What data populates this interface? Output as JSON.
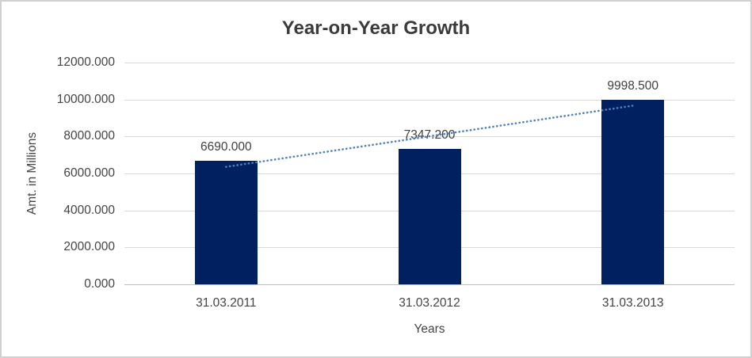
{
  "chart_data": {
    "type": "bar",
    "title": "Year-on-Year Growth",
    "xlabel": "Years",
    "ylabel": "Amt. in Millions",
    "categories": [
      "31.03.2011",
      "31.03.2012",
      "31.03.2013"
    ],
    "values": [
      6690.0,
      7347.2,
      9998.5
    ],
    "data_labels": [
      "6690.000",
      "7347.200",
      "9998.500"
    ],
    "ylim": [
      0,
      12000
    ],
    "ytick_step": 2000,
    "ytick_labels": [
      "0.000",
      "2000.000",
      "4000.000",
      "6000.000",
      "8000.000",
      "10000.000",
      "12000.000"
    ],
    "grid": true,
    "legend": false,
    "trendline": {
      "type": "linear",
      "style": "dotted",
      "endpoint_values": [
        6357.65,
        9666.15
      ]
    },
    "colors": {
      "bar": "#002060",
      "trendline": "#4E81BD",
      "gridline": "#D9D9D9",
      "axis_line": "#BFBFBF",
      "text": "#444444",
      "title_text": "#3B3B3B",
      "frame_border": "#D0D0D0",
      "background": "#FFFFFF"
    }
  }
}
